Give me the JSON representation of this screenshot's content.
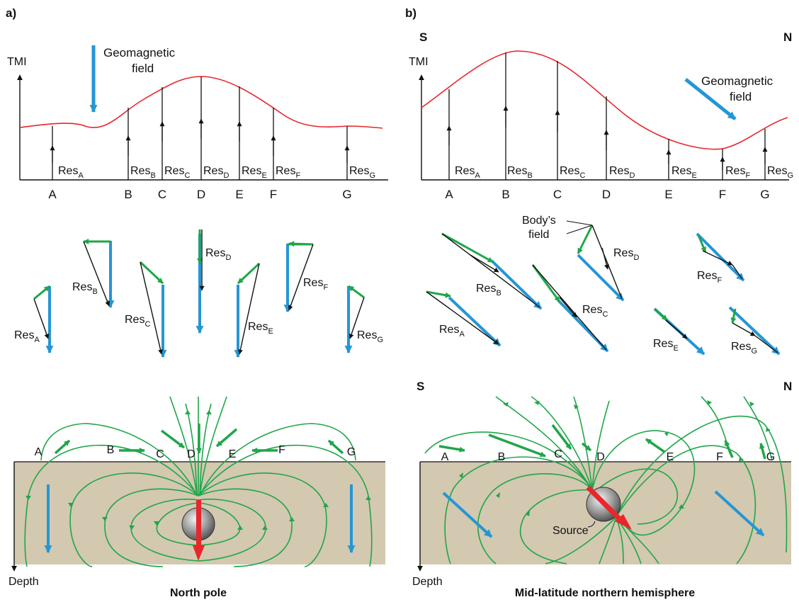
{
  "panels": {
    "a": {
      "label": "a)",
      "tmi_label": "TMI",
      "geomagnetic_label_line1": "Geomagnetic",
      "geomagnetic_label_line2": "field",
      "stations": [
        "A",
        "B",
        "C",
        "D",
        "E",
        "F",
        "G"
      ],
      "res_prefix": "Res",
      "res_subscripts": [
        "A",
        "B",
        "C",
        "D",
        "E",
        "F",
        "G"
      ],
      "depth_label": "Depth",
      "caption": "North pole"
    },
    "b": {
      "label": "b)",
      "south_label": "S",
      "north_label": "N",
      "tmi_label": "TMI",
      "geomagnetic_label_line1": "Geomagnetic",
      "geomagnetic_label_line2": "field",
      "stations": [
        "A",
        "B",
        "C",
        "D",
        "E",
        "F",
        "G"
      ],
      "res_prefix": "Res",
      "res_subscripts": [
        "A",
        "B",
        "C",
        "D",
        "E",
        "F",
        "G"
      ],
      "bodys_field_line1": "Body’s",
      "bodys_field_line2": "field",
      "source_label": "Source",
      "depth_label": "Depth",
      "caption": "Mid-latitude northern hemisphere"
    }
  },
  "colors": {
    "tmi_curve": "#e8262b",
    "geomagnetic_field": "#2596d4",
    "body_field": "#1fa64a",
    "resultant": "#111111",
    "ground": "#d3c8b0",
    "source_magnet": "#e8262b"
  }
}
